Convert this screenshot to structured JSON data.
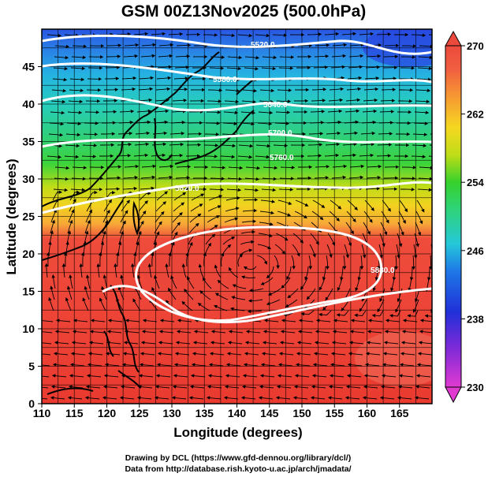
{
  "title": "GSM 00Z13Nov2025 (500.0hPa)",
  "x_axis": {
    "label": "Longitude (degrees)",
    "range": [
      110,
      170
    ],
    "ticks": [
      "110",
      "115",
      "120",
      "125",
      "130",
      "135",
      "140",
      "145",
      "150",
      "155",
      "160",
      "165"
    ]
  },
  "y_axis": {
    "label": "Latitude  (degrees)",
    "range": [
      0,
      50
    ],
    "ticks": [
      "0",
      "5",
      "10",
      "15",
      "20",
      "25",
      "30",
      "35",
      "40",
      "45"
    ]
  },
  "colorbar": {
    "range": [
      230,
      270
    ],
    "ticks": [
      "230",
      "238",
      "246",
      "254",
      "262",
      "270"
    ]
  },
  "contour_labels": [
    "5880.0",
    "5820.0",
    "5760.0",
    "5700.0",
    "5640.0",
    "5580.0",
    "5520.0"
  ],
  "credits": [
    "Drawing by DCL (https://www.gfd-dennou.org/library/dcl/)",
    "Data from http://database.rish.kyoto-u.ac.jp/arch/jmadata/"
  ],
  "colors": {
    "warm": "#f04a3c",
    "mid": "#2ed32a",
    "cold": "#1a3be6",
    "contour": "#ffffff"
  }
}
